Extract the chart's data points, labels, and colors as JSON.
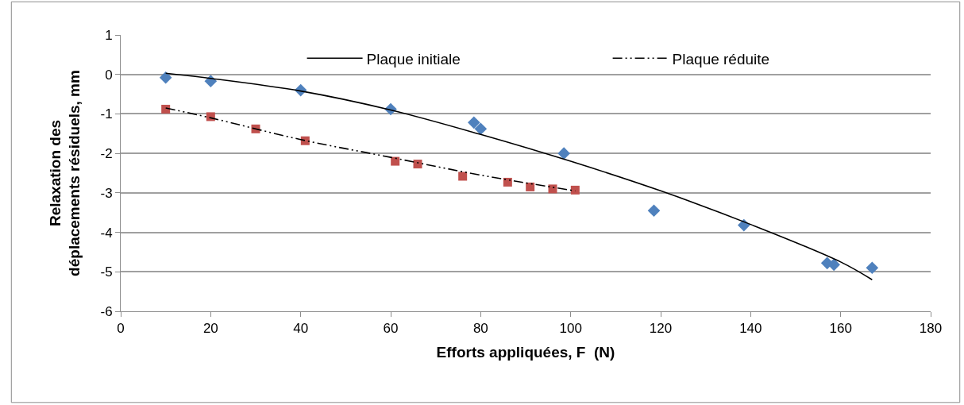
{
  "chart_data": {
    "type": "scatter",
    "xlabel": "Efforts appliquées, F  (N)",
    "ylabel": "Relaxation des déplacements résiduels, mm",
    "xlim": [
      0,
      180
    ],
    "xticks": [
      0,
      20,
      40,
      60,
      80,
      100,
      120,
      140,
      160,
      180
    ],
    "ylim": [
      -6,
      1
    ],
    "yticks": [
      -6,
      -5,
      -4,
      -3,
      -2,
      -1,
      0,
      1
    ],
    "grid": "y",
    "legend": "top right",
    "series": [
      {
        "marker": "diamond",
        "color": "#4f81bd",
        "x": [
          10,
          20,
          40,
          60,
          78.5,
          80,
          98.5,
          118.5,
          138.5,
          157,
          158.5,
          167
        ],
        "values": [
          -0.08,
          -0.17,
          -0.4,
          -0.88,
          -1.22,
          -1.38,
          -2.0,
          -3.45,
          -3.82,
          -4.78,
          -4.82,
          -4.9
        ]
      },
      {
        "marker": "square",
        "color": "#c0504d",
        "x": [
          10,
          20,
          30,
          41,
          61,
          66,
          76,
          86,
          91,
          96,
          101
        ],
        "values": [
          -0.88,
          -1.07,
          -1.38,
          -1.68,
          -2.2,
          -2.27,
          -2.58,
          -2.73,
          -2.85,
          -2.9,
          -2.93
        ]
      },
      {
        "type": "line",
        "name": "Plaque initiale",
        "marker": "none",
        "line_style": "solid",
        "color": "#000000",
        "x": [
          10,
          20,
          40,
          60,
          80,
          100,
          120,
          140,
          160,
          167
        ],
        "values": [
          0.03,
          -0.1,
          -0.42,
          -0.9,
          -1.52,
          -2.2,
          -2.95,
          -3.8,
          -4.75,
          -5.2
        ]
      },
      {
        "type": "line",
        "name": "Plaque réduite",
        "marker": "none",
        "line_style": "dashdotdot",
        "color": "#000000",
        "x": [
          10,
          20,
          40,
          60,
          80,
          101
        ],
        "values": [
          -0.85,
          -1.1,
          -1.65,
          -2.1,
          -2.55,
          -2.95
        ]
      }
    ]
  }
}
